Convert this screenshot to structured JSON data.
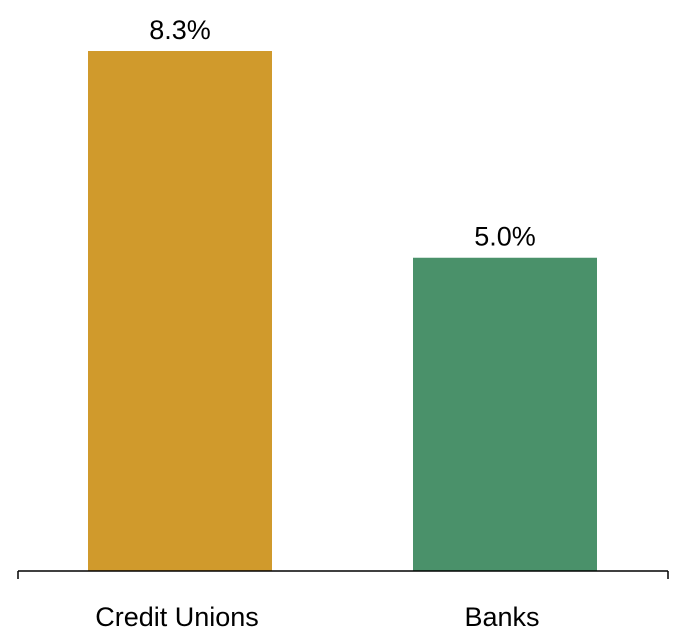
{
  "chart_data": {
    "type": "bar",
    "categories": [
      "Credit Unions",
      "Banks"
    ],
    "values": [
      8.3,
      5.0
    ],
    "value_labels": [
      "8.3%",
      "5.0%"
    ],
    "colors": [
      "#D09A2C",
      "#4A916A"
    ],
    "title": "",
    "xlabel": "",
    "ylabel": "",
    "ylim": [
      0,
      8.3
    ],
    "grid": false,
    "legend": "none"
  }
}
